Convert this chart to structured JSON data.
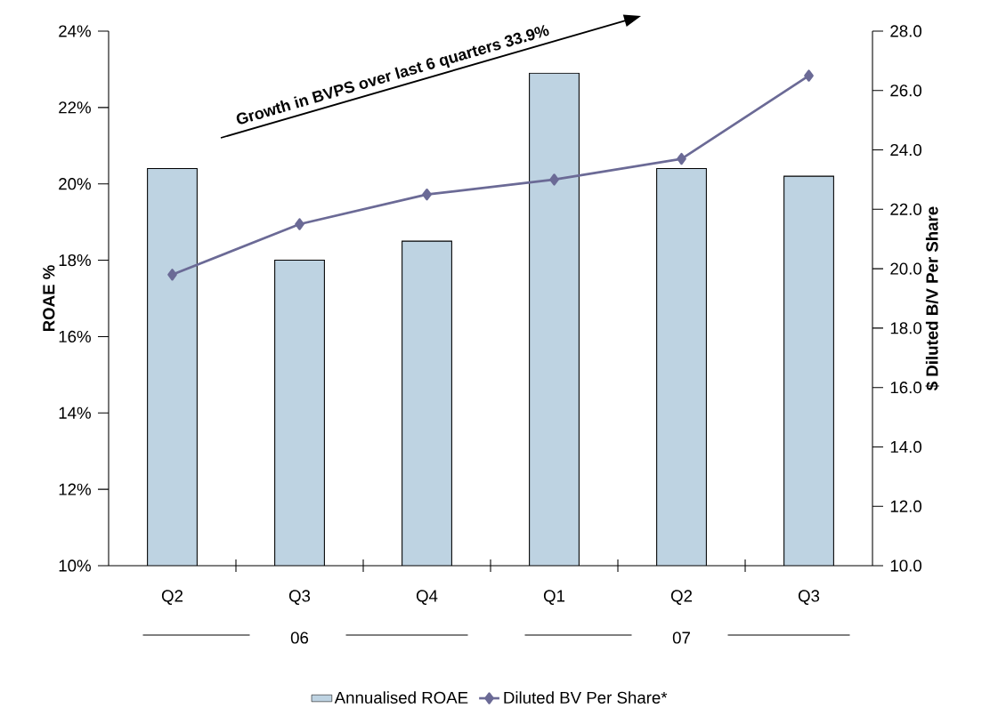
{
  "chart_data": {
    "type": "bar",
    "categories": [
      "Q2",
      "Q3",
      "Q4",
      "Q1",
      "Q2",
      "Q3"
    ],
    "ylabel": "ROAE %",
    "y2label": "$ Diluted B/V Per Share",
    "ylim": [
      10,
      24
    ],
    "yticks": [
      {
        "value": 10,
        "label": "10%"
      },
      {
        "value": 12,
        "label": "12%"
      },
      {
        "value": 14,
        "label": "14%"
      },
      {
        "value": 16,
        "label": "16%"
      },
      {
        "value": 18,
        "label": "18%"
      },
      {
        "value": 20,
        "label": "20%"
      },
      {
        "value": 22,
        "label": "22%"
      },
      {
        "value": 24,
        "label": "24%"
      }
    ],
    "y2lim": [
      10,
      28
    ],
    "y2ticks": [
      {
        "value": 10,
        "label": "10.0"
      },
      {
        "value": 12,
        "label": "12.0"
      },
      {
        "value": 14,
        "label": "14.0"
      },
      {
        "value": 16,
        "label": "16.0"
      },
      {
        "value": 18,
        "label": "18.0"
      },
      {
        "value": 20,
        "label": "20.0"
      },
      {
        "value": 22,
        "label": "22.0"
      },
      {
        "value": 24,
        "label": "24.0"
      },
      {
        "value": 26,
        "label": "26.0"
      },
      {
        "value": 28,
        "label": "28.0"
      }
    ],
    "series": [
      {
        "name": "Annualised ROAE",
        "type": "bar",
        "color": "#bed3e2",
        "values": [
          20.4,
          18.0,
          18.5,
          22.9,
          20.4,
          20.2
        ]
      },
      {
        "name": "Diluted BV Per Share*",
        "type": "line",
        "axis": "y2",
        "color": "#6b6a96",
        "values": [
          19.8,
          21.5,
          22.5,
          23.0,
          23.7,
          26.5
        ]
      }
    ],
    "marker": "diamond",
    "legend": "bottom",
    "annotations": [
      "Growth in BVPS over last 6 quarters 33.9%",
      "06",
      "07"
    ]
  }
}
